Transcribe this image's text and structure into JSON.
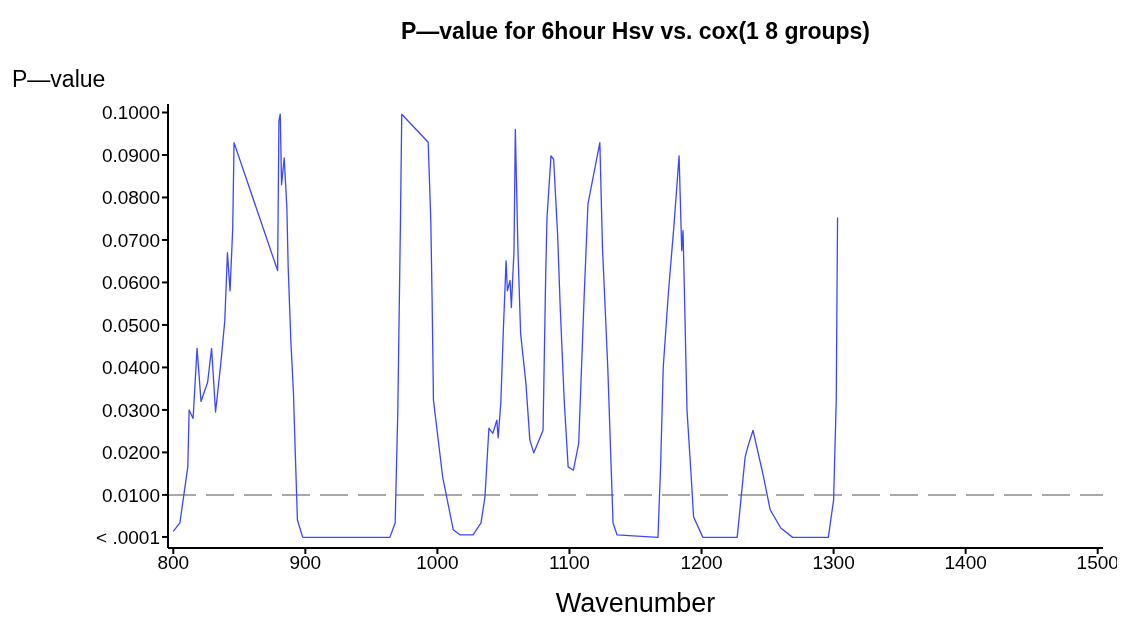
{
  "chart_data": {
    "type": "line",
    "title": "P—value for 6hour Hsv vs. cox(1 8 groups)",
    "xlabel": "Wavenumber",
    "ylabel": "P—value",
    "x": [
      800,
      805,
      808,
      811,
      812,
      815,
      818,
      821,
      826,
      829,
      832,
      836,
      839,
      841,
      843,
      845,
      846,
      879,
      880,
      881,
      882,
      884,
      886,
      887,
      889,
      891,
      892,
      894,
      898,
      964,
      968,
      970,
      972,
      973,
      993,
      995,
      996,
      997,
      1004,
      1012,
      1017,
      1027,
      1033,
      1036,
      1039,
      1042,
      1045,
      1046,
      1048,
      1050,
      1052,
      1053,
      1055,
      1056,
      1058,
      1059,
      1061,
      1063,
      1067,
      1070,
      1073,
      1080,
      1082,
      1083,
      1086,
      1088,
      1091,
      1093,
      1096,
      1099,
      1103,
      1107,
      1111,
      1114,
      1123,
      1125,
      1129,
      1133,
      1136,
      1167,
      1169,
      1171,
      1175,
      1179,
      1183,
      1185,
      1186,
      1189,
      1192,
      1194,
      1201,
      1227,
      1233,
      1235,
      1239,
      1247,
      1252,
      1260,
      1269,
      1296,
      1300,
      1302,
      1303
    ],
    "series": [
      {
        "color": "#3c46ff",
        "values": [
          0.0014,
          0.0034,
          0.01,
          0.0166,
          0.03,
          0.028,
          0.0445,
          0.032,
          0.0365,
          0.0445,
          0.0295,
          0.041,
          0.051,
          0.067,
          0.058,
          0.0727,
          0.0929,
          0.0628,
          0.098,
          0.0996,
          0.083,
          0.0893,
          0.0776,
          0.0635,
          0.0464,
          0.034,
          0.0236,
          0.0041,
          0,
          0,
          0.0034,
          0.0295,
          0.0739,
          0.0996,
          0.093,
          0.0745,
          0.0557,
          0.0323,
          0.0142,
          0.0018,
          0.0006,
          0.0006,
          0.0034,
          0.0095,
          0.0257,
          0.0245,
          0.0276,
          0.0234,
          0.0316,
          0.0494,
          0.0651,
          0.058,
          0.0605,
          0.0541,
          0.0675,
          0.096,
          0.0675,
          0.048,
          0.0363,
          0.0229,
          0.0199,
          0.0252,
          0.062,
          0.0753,
          0.0898,
          0.089,
          0.0714,
          0.0541,
          0.0323,
          0.0166,
          0.0158,
          0.0222,
          0.0557,
          0.0785,
          0.0929,
          0.0682,
          0.04,
          0.0034,
          0.0006,
          0,
          0.0166,
          0.04,
          0.058,
          0.0729,
          0.0898,
          0.0675,
          0.0722,
          0.0299,
          0.0152,
          0.0048,
          0,
          0,
          0.0189,
          0.0213,
          0.0252,
          0.0142,
          0.0065,
          0.0022,
          0,
          0,
          0.0088,
          0.0323,
          0.0753
        ]
      }
    ],
    "xlim": [
      796,
      1504
    ],
    "xticks": [
      800,
      900,
      1000,
      1100,
      1200,
      1300,
      1400,
      1500
    ],
    "ylim": [
      -0.0025,
      0.102
    ],
    "yticks": [
      {
        "value": 0.0001,
        "label": "< .0001"
      },
      {
        "value": 0.01,
        "label": "0.0100"
      },
      {
        "value": 0.02,
        "label": "0.0200"
      },
      {
        "value": 0.03,
        "label": "0.0300"
      },
      {
        "value": 0.04,
        "label": "0.0400"
      },
      {
        "value": 0.05,
        "label": "0.0500"
      },
      {
        "value": 0.06,
        "label": "0.0600"
      },
      {
        "value": 0.07,
        "label": "0.0700"
      },
      {
        "value": 0.08,
        "label": "0.0800"
      },
      {
        "value": 0.09,
        "label": "0.0900"
      },
      {
        "value": 0.1,
        "label": "0.1000"
      }
    ],
    "ref_lines": [
      {
        "axis": "y",
        "value": 0.01,
        "color": "#8c8c8c",
        "line_style": "dashed"
      }
    ]
  }
}
